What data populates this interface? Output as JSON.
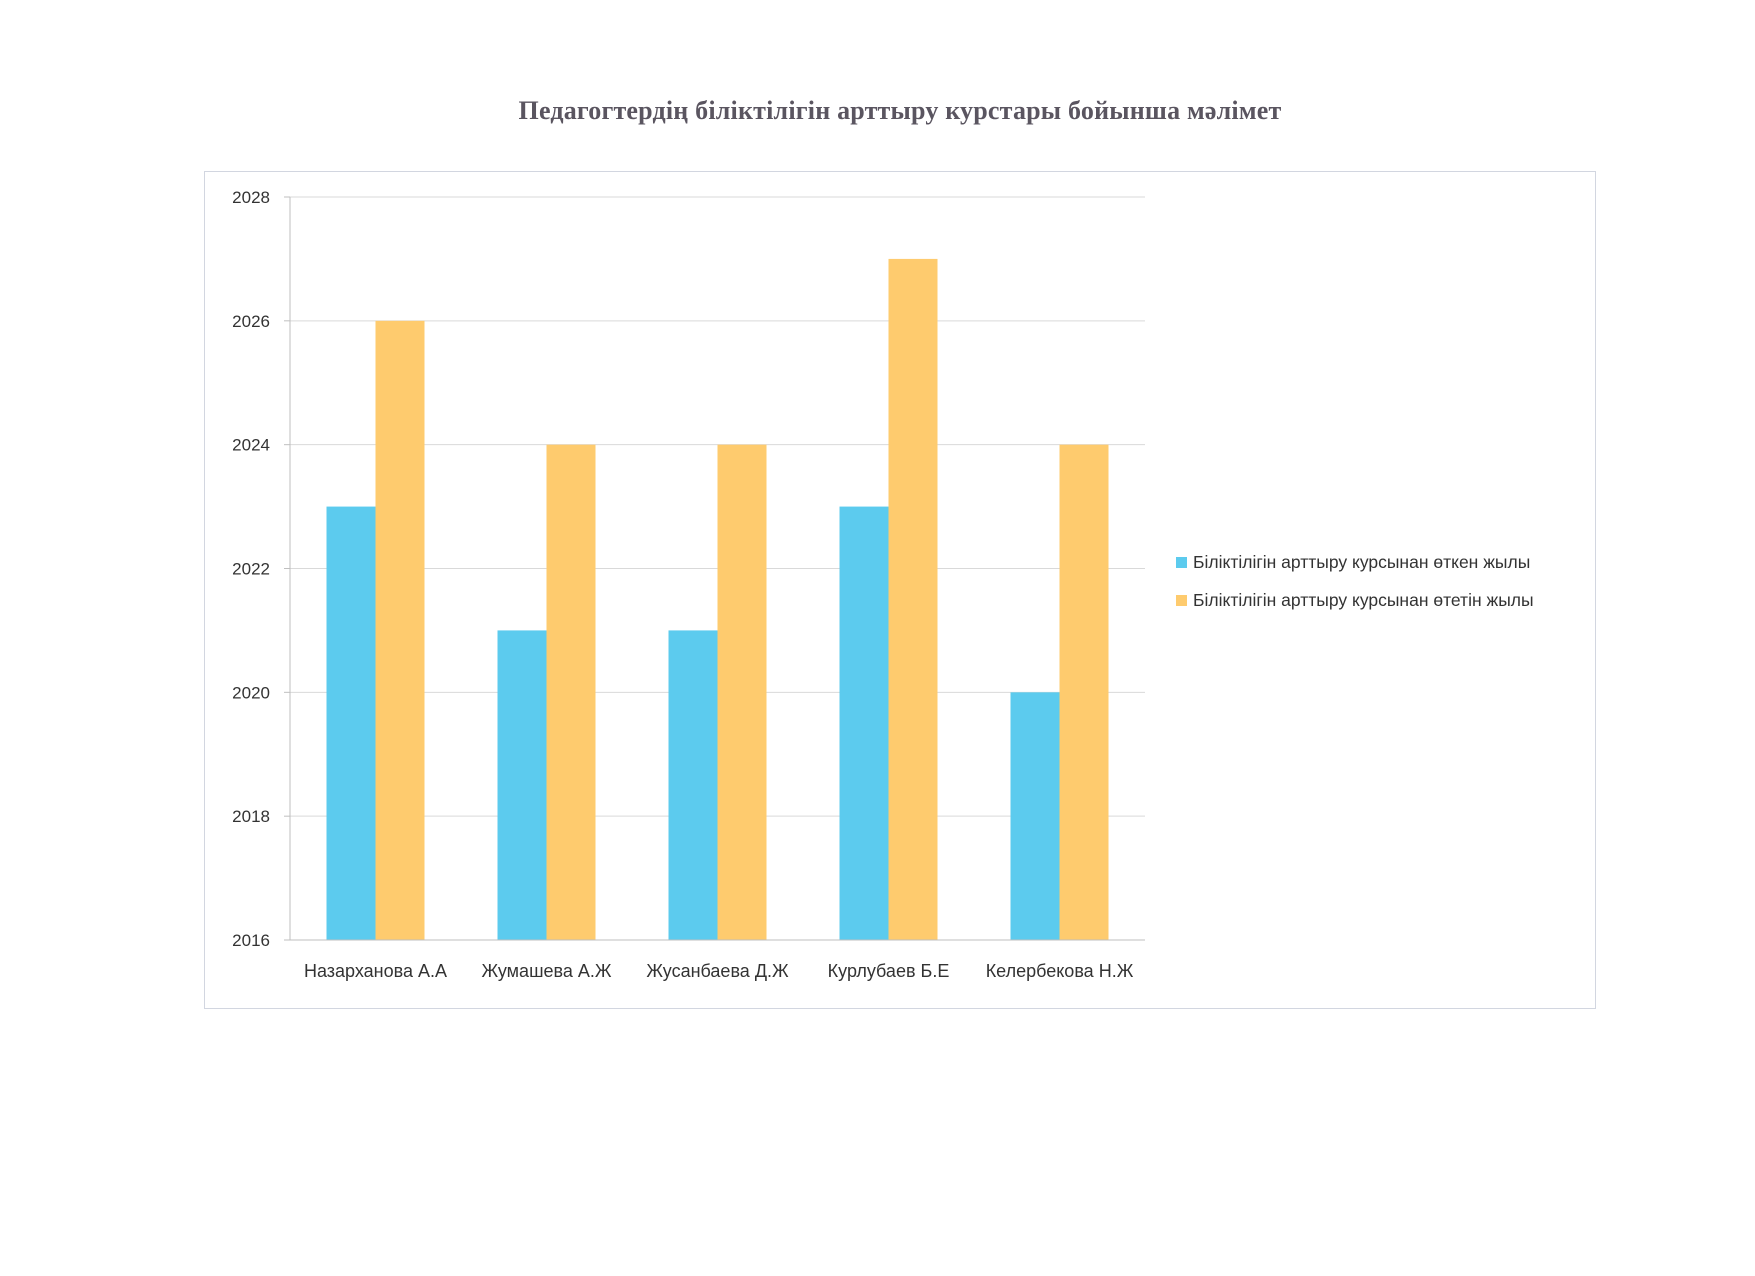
{
  "title": "Педагогтердің біліктілігін арттыру курстары бойынша мәлімет",
  "colors": {
    "series1": "#5ccbee",
    "series2": "#fecb6e",
    "grid": "#d9d9d9",
    "axis": "#bfbfbf"
  },
  "chart_data": {
    "type": "bar",
    "title": "Педагогтердің біліктілігін арттыру курстары бойынша мәлімет",
    "xlabel": "",
    "ylabel": "",
    "ylim": [
      2016,
      2028
    ],
    "yticks": [
      2016,
      2018,
      2020,
      2022,
      2024,
      2026,
      2028
    ],
    "grid": true,
    "legend": "right",
    "categories": [
      "Назарханова А.А",
      "Жумашева А.Ж",
      "Жусанбаева Д.Ж",
      "Курлубаев Б.Е",
      "Келербекова Н.Ж"
    ],
    "series": [
      {
        "name": "Біліктілігін арттыру курсынан өткен жылы",
        "values": [
          2023,
          2021,
          2021,
          2023,
          2020
        ]
      },
      {
        "name": "Біліктілігін арттыру курсынан өтетін жылы",
        "values": [
          2026,
          2024,
          2024,
          2027,
          2024
        ]
      }
    ]
  }
}
